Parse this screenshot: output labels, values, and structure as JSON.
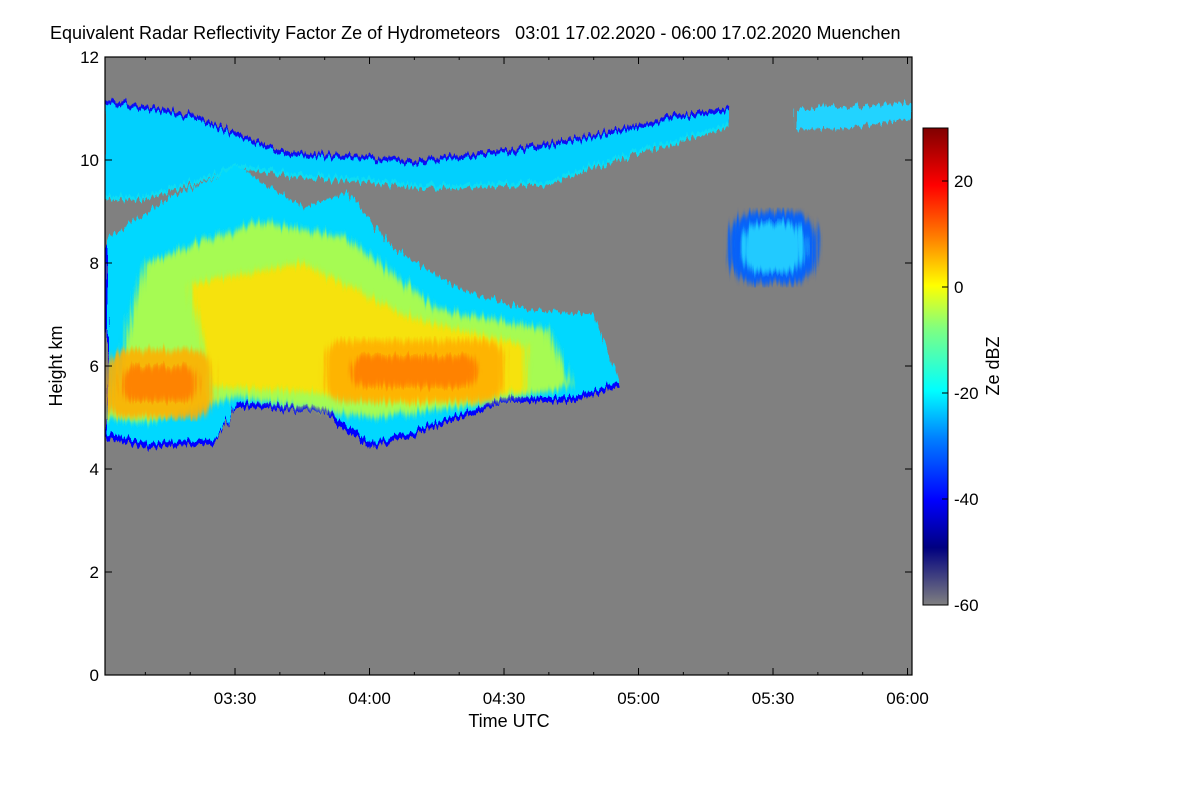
{
  "chart_data": {
    "type": "heatmap",
    "title": "Equivalent Radar Reflectivity Factor Ze of Hydrometeors   03:01 17.02.2020 - 06:00 17.02.2020 Muenchen",
    "xlabel": "Time UTC",
    "ylabel": "Height km",
    "colorbar_label": "Ze dBZ",
    "x_range": [
      "03:01",
      "06:01"
    ],
    "y_range": [
      0,
      12
    ],
    "colorbar_range": [
      -60,
      30
    ],
    "x_ticks": [
      "03:30",
      "04:00",
      "04:30",
      "05:00",
      "05:30",
      "06:00"
    ],
    "y_ticks": [
      "0",
      "2",
      "4",
      "6",
      "8",
      "10",
      "12"
    ],
    "colorbar_ticks": [
      "-60",
      "-40",
      "-20",
      "0",
      "20"
    ],
    "background_color": "#808080",
    "colormap": [
      "#000080",
      "#0000ff",
      "#00ffff",
      "#ffff00",
      "#ff8000",
      "#ff0000",
      "#800000"
    ],
    "grid": false,
    "echo_regions": [
      {
        "name": "cirrus-layer",
        "t_start": "03:01",
        "t_end": "06:01",
        "base_km": 9.3,
        "top_km": 11.2,
        "dbz_range": [
          -40,
          -15
        ]
      },
      {
        "name": "main-precipitating-cloud",
        "t_start": "03:01",
        "t_end": "04:56",
        "base_km": 4.3,
        "top_km": 9.8,
        "dbz_range": [
          -40,
          7
        ]
      },
      {
        "name": "core-high-reflectivity",
        "t_start": "03:01",
        "t_end": "04:30",
        "base_km": 5.0,
        "top_km": 6.5,
        "dbz_range": [
          0,
          10
        ]
      },
      {
        "name": "isolated-echoes",
        "t_start": "05:20",
        "t_end": "05:40",
        "base_km": 7.6,
        "top_km": 9.0,
        "dbz_range": [
          -35,
          -25
        ]
      }
    ]
  }
}
